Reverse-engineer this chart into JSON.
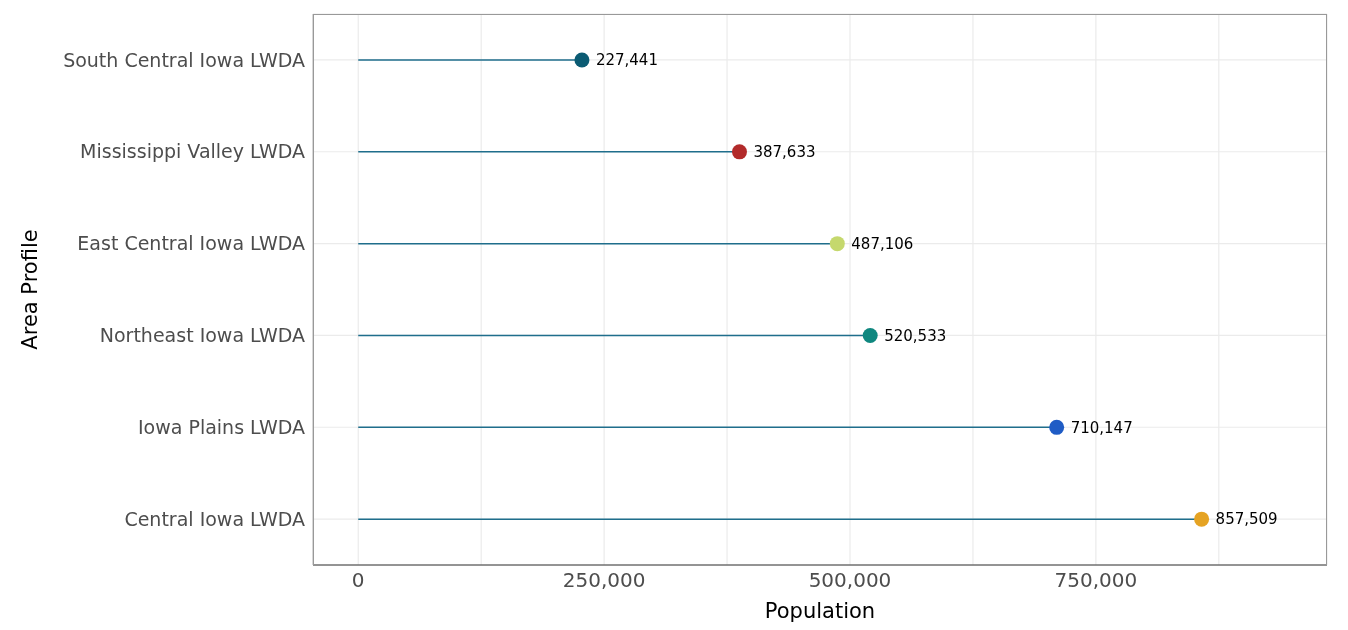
{
  "chart_data": {
    "type": "lollipop",
    "orientation": "horizontal",
    "xlabel": "Population",
    "ylabel": "Area Profile",
    "categories": [
      "South Central Iowa LWDA",
      "Mississippi Valley LWDA",
      "East Central Iowa LWDA",
      "Northeast Iowa LWDA",
      "Iowa Plains LWDA",
      "Central Iowa LWDA"
    ],
    "values": [
      227441,
      387633,
      487106,
      520533,
      710147,
      857509
    ],
    "colors": [
      "#0b5b73",
      "#b22a2a",
      "#c5d86d",
      "#0f877f",
      "#1f5cc5",
      "#e5a323"
    ],
    "xlim": [
      -46000,
      985000
    ],
    "xticks": [
      {
        "value": 0,
        "label": "0"
      },
      {
        "value": 125000,
        "label": null
      },
      {
        "value": 250000,
        "label": "250,000"
      },
      {
        "value": 375000,
        "label": null
      },
      {
        "value": 500000,
        "label": "500,000"
      },
      {
        "value": 625000,
        "label": null
      },
      {
        "value": 750000,
        "label": "750,000"
      },
      {
        "value": 875000,
        "label": null
      }
    ],
    "value_labels": [
      "227,441",
      "387,633",
      "487,106",
      "520,533",
      "710,147",
      "857,509"
    ],
    "grid": true
  }
}
